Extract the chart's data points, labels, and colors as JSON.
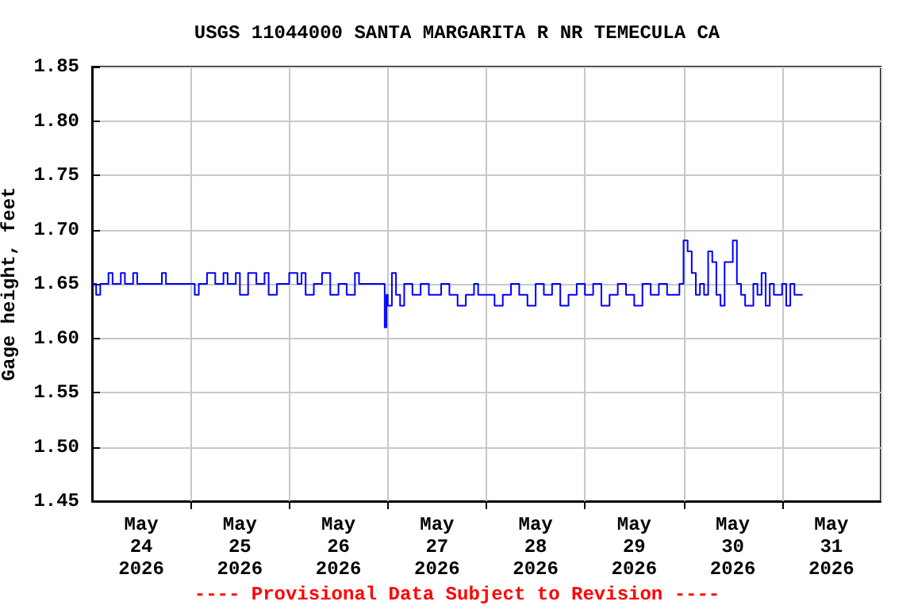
{
  "chart_data": {
    "type": "step",
    "title": "USGS 11044000 SANTA MARGARITA R NR TEMECULA CA",
    "ylabel": "Gage height, feet",
    "annotations": [
      "---- Provisional Data Subject to Revision ----"
    ],
    "xlim": [
      "2026-05-24",
      "2026-06-01"
    ],
    "xticks": [
      {
        "value": "2026-05-24T12:00",
        "label": "May\n24\n2026"
      },
      {
        "value": "2026-05-25",
        "label": null
      },
      {
        "value": "2026-05-25T12:00",
        "label": "May\n25\n2026"
      },
      {
        "value": "2026-05-26",
        "label": null
      },
      {
        "value": "2026-05-26T12:00",
        "label": "May\n26\n2026"
      },
      {
        "value": "2026-05-27",
        "label": null
      },
      {
        "value": "2026-05-27T12:00",
        "label": "May\n27\n2026"
      },
      {
        "value": "2026-05-28",
        "label": null
      },
      {
        "value": "2026-05-28T12:00",
        "label": "May\n28\n2026"
      },
      {
        "value": "2026-05-29",
        "label": null
      },
      {
        "value": "2026-05-29T12:00",
        "label": "May\n29\n2026"
      },
      {
        "value": "2026-05-30",
        "label": null
      },
      {
        "value": "2026-05-30T12:00",
        "label": "May\n30\n2026"
      },
      {
        "value": "2026-05-31",
        "label": null
      },
      {
        "value": "2026-05-31T12:00",
        "label": "May\n31\n2026"
      }
    ],
    "ylim": [
      1.45,
      1.85
    ],
    "yticks": [
      {
        "value": 1.45,
        "label": "1.45"
      },
      {
        "value": 1.5,
        "label": "1.50"
      },
      {
        "value": 1.55,
        "label": "1.55"
      },
      {
        "value": 1.6,
        "label": "1.60"
      },
      {
        "value": 1.65,
        "label": "1.65"
      },
      {
        "value": 1.7,
        "label": "1.70"
      },
      {
        "value": 1.75,
        "label": "1.75"
      },
      {
        "value": 1.8,
        "label": "1.80"
      },
      {
        "value": 1.85,
        "label": "1.85"
      }
    ],
    "grid": true,
    "series": [
      {
        "color": "#0000ff",
        "x": [
          "2026-05-24T00:00",
          "2026-05-24T01:00",
          "2026-05-24T02:00",
          "2026-05-24T04:00",
          "2026-05-24T05:00",
          "2026-05-24T07:00",
          "2026-05-24T08:00",
          "2026-05-24T10:00",
          "2026-05-24T11:00",
          "2026-05-24T14:00",
          "2026-05-24T17:00",
          "2026-05-24T18:00",
          "2026-05-24T21:00",
          "2026-05-24T23:00",
          "2026-05-25T00:00",
          "2026-05-25T01:00",
          "2026-05-25T02:00",
          "2026-05-25T04:00",
          "2026-05-25T06:00",
          "2026-05-25T08:00",
          "2026-05-25T09:00",
          "2026-05-25T11:00",
          "2026-05-25T12:00",
          "2026-05-25T14:00",
          "2026-05-25T16:00",
          "2026-05-25T18:00",
          "2026-05-25T19:00",
          "2026-05-25T21:00",
          "2026-05-26T00:00",
          "2026-05-26T02:00",
          "2026-05-26T03:00",
          "2026-05-26T04:00",
          "2026-05-26T06:00",
          "2026-05-26T08:00",
          "2026-05-26T10:00",
          "2026-05-26T12:00",
          "2026-05-26T14:00",
          "2026-05-26T16:00",
          "2026-05-26T17:00",
          "2026-05-26T20:00",
          "2026-05-26T22:00",
          "2026-05-26T23:15",
          "2026-05-26T23:40",
          "2026-05-27T00:00",
          "2026-05-27T01:00",
          "2026-05-27T02:00",
          "2026-05-27T03:00",
          "2026-05-27T04:00",
          "2026-05-27T06:00",
          "2026-05-27T08:00",
          "2026-05-27T10:00",
          "2026-05-27T13:00",
          "2026-05-27T15:00",
          "2026-05-27T17:00",
          "2026-05-27T19:00",
          "2026-05-27T21:00",
          "2026-05-27T22:00",
          "2026-05-28T00:00",
          "2026-05-28T02:00",
          "2026-05-28T04:00",
          "2026-05-28T06:00",
          "2026-05-28T08:00",
          "2026-05-28T10:00",
          "2026-05-28T12:00",
          "2026-05-28T14:00",
          "2026-05-28T16:00",
          "2026-05-28T18:00",
          "2026-05-28T20:00",
          "2026-05-28T22:00",
          "2026-05-29T00:00",
          "2026-05-29T02:00",
          "2026-05-29T04:00",
          "2026-05-29T06:00",
          "2026-05-29T08:00",
          "2026-05-29T10:00",
          "2026-05-29T12:00",
          "2026-05-29T14:00",
          "2026-05-29T16:00",
          "2026-05-29T18:00",
          "2026-05-29T20:00",
          "2026-05-29T22:00",
          "2026-05-29T23:00",
          "2026-05-30T00:00",
          "2026-05-30T01:00",
          "2026-05-30T02:00",
          "2026-05-30T03:00",
          "2026-05-30T04:00",
          "2026-05-30T05:00",
          "2026-05-30T06:00",
          "2026-05-30T07:00",
          "2026-05-30T08:00",
          "2026-05-30T09:00",
          "2026-05-30T10:00",
          "2026-05-30T12:00",
          "2026-05-30T13:00",
          "2026-05-30T14:00",
          "2026-05-30T15:00",
          "2026-05-30T17:00",
          "2026-05-30T18:00",
          "2026-05-30T19:00",
          "2026-05-30T20:00",
          "2026-05-30T21:00",
          "2026-05-30T22:00",
          "2026-05-31T00:00",
          "2026-05-31T01:00",
          "2026-05-31T02:00",
          "2026-05-31T03:00",
          "2026-05-31T05:00"
        ],
        "values": [
          1.65,
          1.64,
          1.65,
          1.66,
          1.65,
          1.66,
          1.65,
          1.66,
          1.65,
          1.65,
          1.66,
          1.65,
          1.65,
          1.65,
          1.65,
          1.64,
          1.65,
          1.66,
          1.65,
          1.66,
          1.65,
          1.66,
          1.64,
          1.66,
          1.65,
          1.66,
          1.64,
          1.65,
          1.66,
          1.65,
          1.66,
          1.64,
          1.65,
          1.66,
          1.64,
          1.65,
          1.64,
          1.66,
          1.65,
          1.65,
          1.65,
          1.61,
          1.64,
          1.63,
          1.66,
          1.64,
          1.63,
          1.65,
          1.64,
          1.65,
          1.64,
          1.65,
          1.64,
          1.63,
          1.64,
          1.65,
          1.64,
          1.64,
          1.63,
          1.64,
          1.65,
          1.64,
          1.63,
          1.65,
          1.64,
          1.65,
          1.63,
          1.64,
          1.65,
          1.64,
          1.65,
          1.63,
          1.64,
          1.65,
          1.64,
          1.63,
          1.65,
          1.64,
          1.65,
          1.64,
          1.64,
          1.65,
          1.69,
          1.68,
          1.66,
          1.64,
          1.65,
          1.64,
          1.68,
          1.67,
          1.64,
          1.63,
          1.67,
          1.69,
          1.65,
          1.64,
          1.63,
          1.65,
          1.64,
          1.66,
          1.63,
          1.65,
          1.64,
          1.65,
          1.63,
          1.65,
          1.64,
          1.64
        ]
      }
    ]
  }
}
